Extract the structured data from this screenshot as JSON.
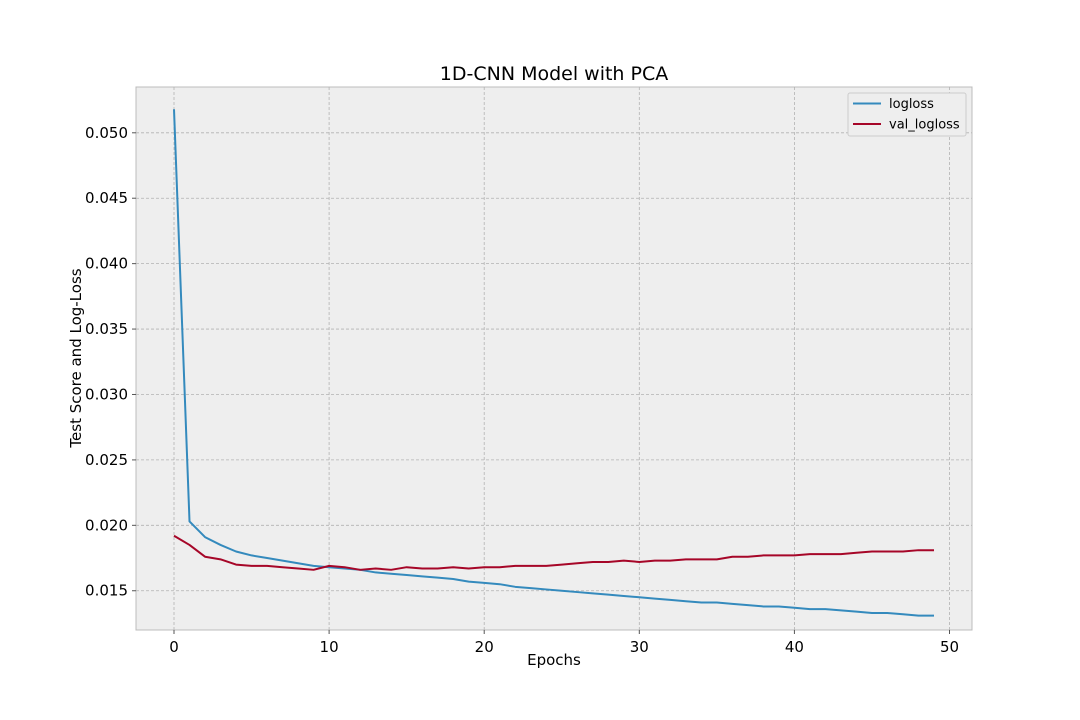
{
  "chart_data": {
    "type": "line",
    "title": "1D-CNN Model with PCA",
    "xlabel": "Epochs",
    "ylabel": "Test Score and Log-Loss",
    "xlim": [
      -2.45,
      51.45
    ],
    "ylim": [
      0.012,
      0.0535
    ],
    "xticks": [
      0,
      10,
      20,
      30,
      40,
      50
    ],
    "yticks": [
      0.015,
      0.02,
      0.025,
      0.03,
      0.035,
      0.04,
      0.045,
      0.05
    ],
    "xtick_labels": [
      "0",
      "10",
      "20",
      "30",
      "40",
      "50"
    ],
    "ytick_labels": [
      "0.015",
      "0.020",
      "0.025",
      "0.030",
      "0.035",
      "0.040",
      "0.045",
      "0.050"
    ],
    "grid": true,
    "legend_position": "top-right",
    "x": [
      0,
      1,
      2,
      3,
      4,
      5,
      6,
      7,
      8,
      9,
      10,
      11,
      12,
      13,
      14,
      15,
      16,
      17,
      18,
      19,
      20,
      21,
      22,
      23,
      24,
      25,
      26,
      27,
      28,
      29,
      30,
      31,
      32,
      33,
      34,
      35,
      36,
      37,
      38,
      39,
      40,
      41,
      42,
      43,
      44,
      45,
      46,
      47,
      48,
      49
    ],
    "series": [
      {
        "name": "logloss",
        "color": "#348abd",
        "values": [
          0.0518,
          0.0203,
          0.0191,
          0.0185,
          0.018,
          0.0177,
          0.0175,
          0.0173,
          0.0171,
          0.0169,
          0.0168,
          0.0167,
          0.0166,
          0.0164,
          0.0163,
          0.0162,
          0.0161,
          0.016,
          0.0159,
          0.0157,
          0.0156,
          0.0155,
          0.0153,
          0.0152,
          0.0151,
          0.015,
          0.0149,
          0.0148,
          0.0147,
          0.0146,
          0.0145,
          0.0144,
          0.0143,
          0.0142,
          0.0141,
          0.0141,
          0.014,
          0.0139,
          0.0138,
          0.0138,
          0.0137,
          0.0136,
          0.0136,
          0.0135,
          0.0134,
          0.0133,
          0.0133,
          0.0132,
          0.0131,
          0.0131
        ]
      },
      {
        "name": "val_logloss",
        "color": "#a60628",
        "values": [
          0.0192,
          0.0185,
          0.0176,
          0.0174,
          0.017,
          0.0169,
          0.0169,
          0.0168,
          0.0167,
          0.0166,
          0.0169,
          0.0168,
          0.0166,
          0.0167,
          0.0166,
          0.0168,
          0.0167,
          0.0167,
          0.0168,
          0.0167,
          0.0168,
          0.0168,
          0.0169,
          0.0169,
          0.0169,
          0.017,
          0.0171,
          0.0172,
          0.0172,
          0.0173,
          0.0172,
          0.0173,
          0.0173,
          0.0174,
          0.0174,
          0.0174,
          0.0176,
          0.0176,
          0.0177,
          0.0177,
          0.0177,
          0.0178,
          0.0178,
          0.0178,
          0.0179,
          0.018,
          0.018,
          0.018,
          0.0181,
          0.0181
        ]
      }
    ]
  }
}
